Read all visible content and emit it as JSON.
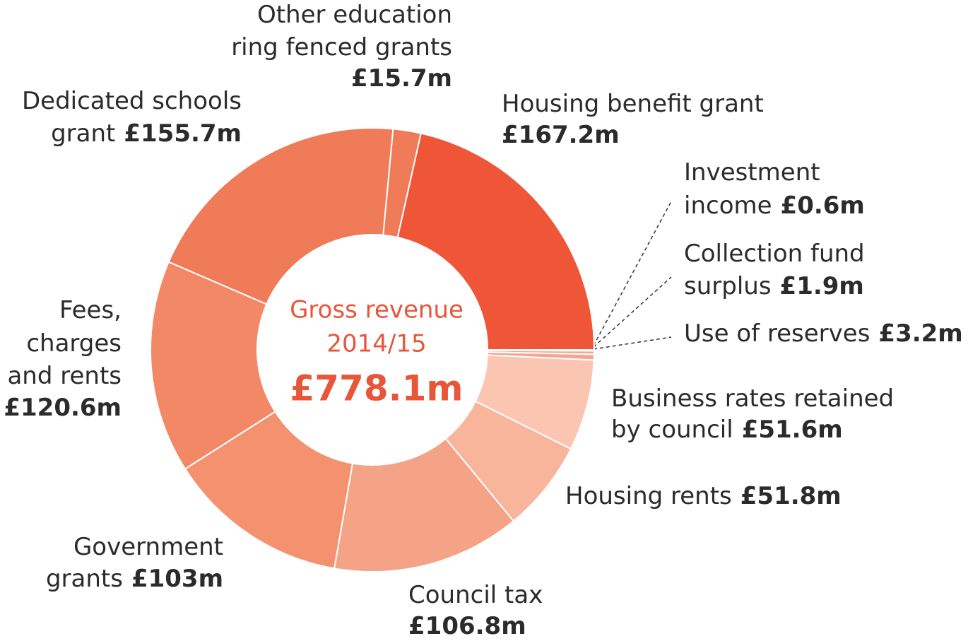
{
  "chart_data": {
    "type": "donut",
    "center_title": "Gross revenue",
    "center_subtitle": "2014/15",
    "total_label": "£778.1m",
    "categories": [
      [
        "Housing benefit grant"
      ],
      [
        "Investment",
        "income"
      ],
      [
        "Collection fund",
        "surplus"
      ],
      [
        "Use of reserves"
      ],
      [
        "Business rates retained",
        "by council"
      ],
      [
        "Housing rents"
      ],
      [
        "Council tax"
      ],
      [
        "Government",
        "grants"
      ],
      [
        "Fees,",
        "charges",
        "and rents"
      ],
      [
        "Dedicated schools",
        "grant"
      ],
      [
        "Other education",
        "ring fenced grants"
      ]
    ],
    "values": [
      167.2,
      0.6,
      1.9,
      3.2,
      51.6,
      51.8,
      106.8,
      103,
      120.6,
      155.7,
      15.7
    ],
    "value_labels": [
      "£167.2m",
      "£0.6m",
      "£1.9m",
      "£3.2m",
      "£51.6m",
      "£51.8m",
      "£106.8m",
      "£103m",
      "£120.6m",
      "£155.7m",
      "£15.7m"
    ],
    "colors": [
      "#ef5638",
      "#f4a58f",
      "#f4a58f",
      "#f4a58f",
      "#fac6b2",
      "#f8b59c",
      "#f5a386",
      "#f4926f",
      "#f28866",
      "#f07b58",
      "#f07b58"
    ]
  }
}
